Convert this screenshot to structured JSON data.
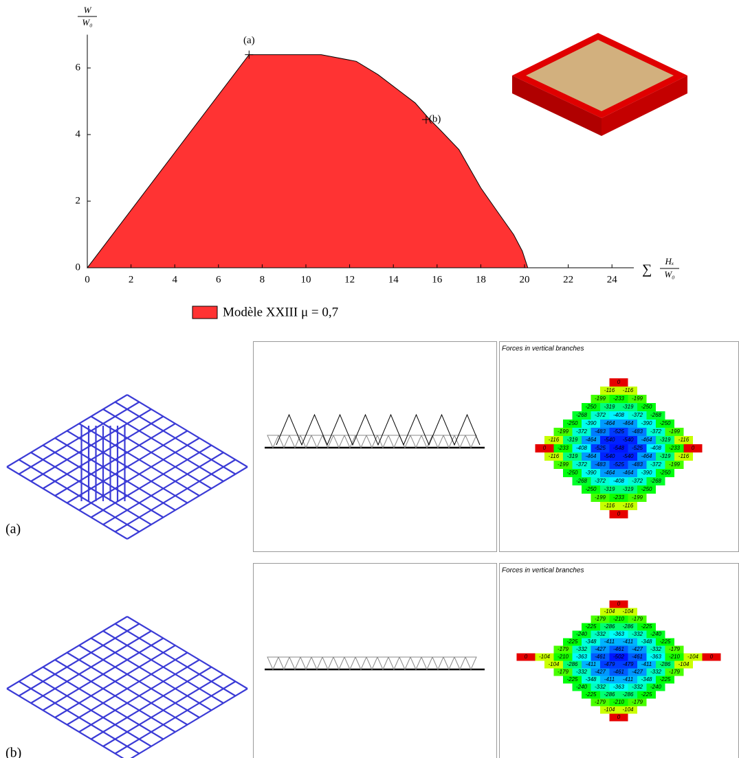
{
  "chart_data": {
    "type": "area",
    "y_label": {
      "numerator": "W",
      "denominator": "W₀"
    },
    "x_label": {
      "prefix": "∑",
      "numerator": "Hₓ",
      "denominator": "W₀"
    },
    "x": [
      0,
      7.4,
      10.7,
      12.3,
      13.3,
      14.2,
      15,
      15.6,
      16.2,
      17,
      18,
      18.8,
      19.5,
      19.9,
      20.15
    ],
    "series": [
      {
        "name": "Modèle XXIII  μ = 0,7",
        "color": "#ff3333",
        "values": [
          0,
          6.4,
          6.4,
          6.2,
          5.8,
          5.35,
          4.95,
          4.5,
          4.1,
          3.55,
          2.4,
          1.65,
          1.0,
          0.5,
          0
        ]
      }
    ],
    "xlim": [
      0,
      25
    ],
    "ylim": [
      0,
      7
    ],
    "xticks": [
      0,
      2,
      4,
      6,
      8,
      10,
      12,
      14,
      16,
      18,
      20,
      22,
      24
    ],
    "yticks": [
      0,
      2,
      4,
      6
    ],
    "annotations": [
      {
        "label": "(a)",
        "x": 7.4,
        "y": 6.4
      },
      {
        "label": "(b)",
        "x": 15.5,
        "y": 4.45
      }
    ]
  },
  "panels": [
    {
      "label": "(a)",
      "title": "Forces in vertical branches",
      "forces": [
        [
          0
        ],
        [
          -116,
          -116
        ],
        [
          -199,
          -233,
          -199
        ],
        [
          -250,
          -319,
          -319,
          -250
        ],
        [
          -268,
          -372,
          -408,
          -372,
          -268
        ],
        [
          -250,
          -390,
          -464,
          -464,
          -390,
          -250
        ],
        [
          -199,
          -372,
          -483,
          -525,
          -483,
          -372,
          -199
        ],
        [
          -116,
          -319,
          -464,
          -540,
          -540,
          -464,
          -319,
          -116
        ],
        [
          0,
          -233,
          -408,
          -525,
          -548,
          -525,
          -408,
          -233,
          0
        ],
        [
          -116,
          -319,
          -464,
          -540,
          -540,
          -464,
          -319,
          -116
        ],
        [
          -199,
          -372,
          -483,
          -525,
          -483,
          -372,
          -199
        ],
        [
          -250,
          -390,
          -464,
          -464,
          -390,
          -250
        ],
        [
          -268,
          -372,
          -408,
          -372,
          -268
        ],
        [
          -250,
          -319,
          -319,
          -250
        ],
        [
          -199,
          -233,
          -199
        ],
        [
          -116,
          -116
        ],
        [
          0
        ]
      ]
    },
    {
      "label": "(b)",
      "title": "Forces in vertical branches",
      "forces": [
        [
          0
        ],
        [
          -104,
          -104
        ],
        [
          -179,
          -210,
          -179
        ],
        [
          -225,
          -286,
          -286,
          -225
        ],
        [
          -240,
          -332,
          -363,
          -332,
          -240
        ],
        [
          -225,
          -348,
          -411,
          -411,
          -348,
          -225
        ],
        [
          -179,
          -332,
          -427,
          -461,
          -427,
          -332,
          -179
        ],
        [
          0,
          -104,
          -210,
          -363,
          -461,
          -502,
          -461,
          -363,
          -210,
          -104,
          0
        ],
        [
          -104,
          -286,
          -411,
          -479,
          -479,
          -411,
          -286,
          -104
        ],
        [
          -179,
          -332,
          -427,
          -461,
          -427,
          -332,
          -179
        ],
        [
          -225,
          -348,
          -411,
          -411,
          -348,
          -225
        ],
        [
          -240,
          -332,
          -363,
          -332,
          -240
        ],
        [
          -225,
          -286,
          -286,
          -225
        ],
        [
          -179,
          -210,
          -179
        ],
        [
          -104,
          -104
        ],
        [
          0
        ]
      ]
    }
  ]
}
